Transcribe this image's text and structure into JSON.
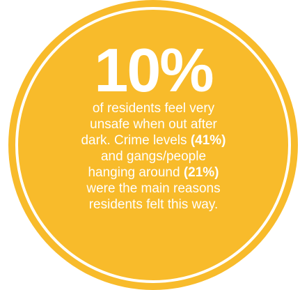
{
  "stat": {
    "headline": "10%",
    "lines": [
      {
        "segments": [
          {
            "text": "of residents feel very",
            "bold": false
          }
        ]
      },
      {
        "segments": [
          {
            "text": "unsafe when out after",
            "bold": false
          }
        ]
      },
      {
        "segments": [
          {
            "text": "dark. Crime levels ",
            "bold": false
          },
          {
            "text": "(41%)",
            "bold": true
          }
        ]
      },
      {
        "segments": [
          {
            "text": "and gangs/people",
            "bold": false
          }
        ]
      },
      {
        "segments": [
          {
            "text": "hanging around ",
            "bold": false
          },
          {
            "text": "(21%)",
            "bold": true
          }
        ]
      },
      {
        "segments": [
          {
            "text": "were the main reasons",
            "bold": false
          }
        ]
      },
      {
        "segments": [
          {
            "text": "residents felt this way.",
            "bold": false
          }
        ]
      }
    ]
  },
  "colors": {
    "disc": "#f8bb2b",
    "ring": "#ffffff",
    "text": "#ffffff",
    "background": "#ffffff"
  }
}
